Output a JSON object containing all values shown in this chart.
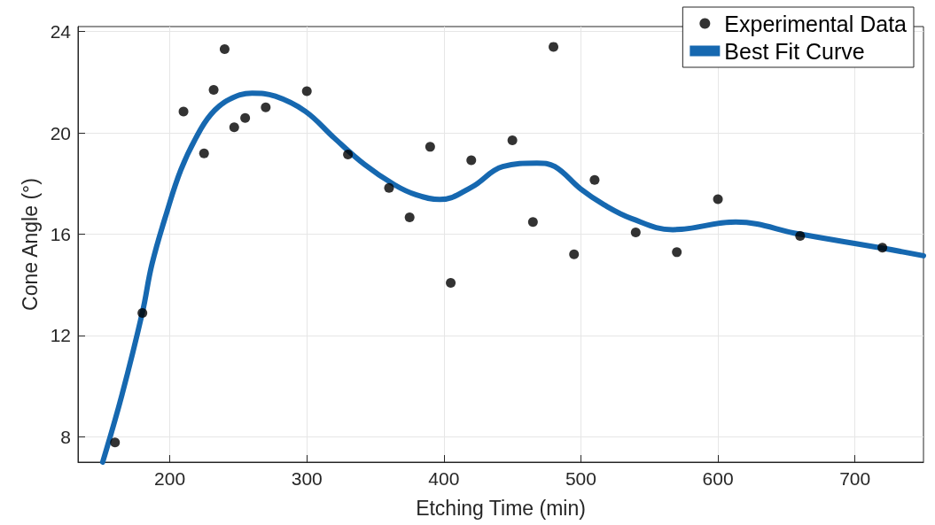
{
  "chart_data": {
    "type": "scatter",
    "xlabel": "Etching Time (min)",
    "ylabel": "Cone Angle (°)",
    "xlim": [
      133,
      750
    ],
    "xticks": [
      200,
      300,
      400,
      500,
      600,
      700
    ],
    "ylim": [
      7,
      24.2
    ],
    "yticks": [
      8,
      12,
      16,
      20,
      24
    ],
    "grid": true,
    "legend": "top right",
    "series": [
      {
        "name": "Experimental Data",
        "marker": "circle",
        "color": "#000000",
        "x": [
          160,
          180,
          210,
          225,
          232,
          240,
          247,
          255,
          270,
          300,
          330,
          360,
          375,
          390,
          405,
          420,
          450,
          465,
          480,
          495,
          510,
          540,
          570,
          600,
          660,
          720
        ],
        "values": [
          7.78,
          12.89,
          20.84,
          19.19,
          21.7,
          23.31,
          20.22,
          20.59,
          21.01,
          21.65,
          19.15,
          17.83,
          16.67,
          19.45,
          14.08,
          18.92,
          19.71,
          16.48,
          23.4,
          15.21,
          18.14,
          16.07,
          15.29,
          17.38,
          15.93,
          15.47
        ]
      },
      {
        "name": "Best Fit Curve",
        "type": "line",
        "marker": "none",
        "line_style": "solid",
        "color": "#1668b0",
        "x": [
          151,
          165,
          180,
          187,
          198,
          208,
          219,
          230,
          243,
          260,
          277,
          299,
          320,
          342,
          364,
          380,
          397,
          420,
          443,
          468,
          481,
          500,
          517,
          537,
          567,
          613,
          660,
          720,
          750
        ],
        "values": [
          7.0,
          9.64,
          12.91,
          14.82,
          16.9,
          18.53,
          19.8,
          20.73,
          21.31,
          21.57,
          21.45,
          20.85,
          19.8,
          18.76,
          17.95,
          17.55,
          17.37,
          17.85,
          18.67,
          18.81,
          18.67,
          17.78,
          17.16,
          16.62,
          16.18,
          16.48,
          16.0,
          15.45,
          15.15
        ]
      }
    ]
  }
}
